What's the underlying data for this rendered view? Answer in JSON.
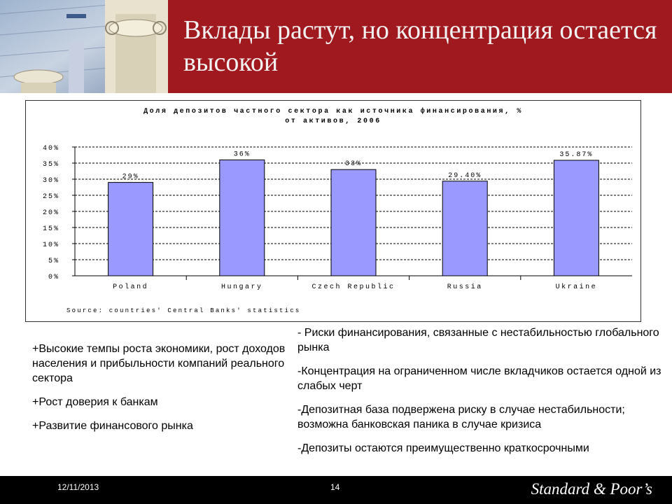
{
  "slide": {
    "title": "Вклады растут, но концентрация остается высокой",
    "colors": {
      "header": "#a0191e",
      "bar": "#9999ff",
      "footer": "#000000"
    }
  },
  "chart_data": {
    "type": "bar",
    "title": "Доля депозитов частного сектора как источника финансирования, % от активов, 2006",
    "categories": [
      "Poland",
      "Hungary",
      "Czech Republic",
      "Russia",
      "Ukraine"
    ],
    "values": [
      29,
      36,
      33,
      29.4,
      35.87
    ],
    "data_labels": [
      "29%",
      "36%",
      "33%",
      "29.40%",
      "35.87%"
    ],
    "y_ticks": [
      "0%",
      "5%",
      "10%",
      "15%",
      "20%",
      "25%",
      "30%",
      "35%",
      "40%"
    ],
    "ylim": [
      0,
      40
    ],
    "grid": true,
    "source": "Source: countries' Central Banks' statistics"
  },
  "left_points": [
    "+Высокие темпы роста экономики, рост доходов населения и прибыльности компаний реального сектора",
    "+Рост доверия к банкам",
    "+Развитие финансового рынка"
  ],
  "right_points": [
    "- Риски финансирования, связанные с нестабильностью глобального рынка",
    "-Концентрация на ограниченном числе вкладчиков остается одной из слабых черт",
    "-Депозитная база подвержена риску в случае нестабильности; возможна банковская паника в случае кризиса",
    "-Депозиты остаются преимущественно краткосрочными"
  ],
  "footer": {
    "date": "12/11/2013",
    "page": "14",
    "brand": "Standard & Poor’s"
  }
}
